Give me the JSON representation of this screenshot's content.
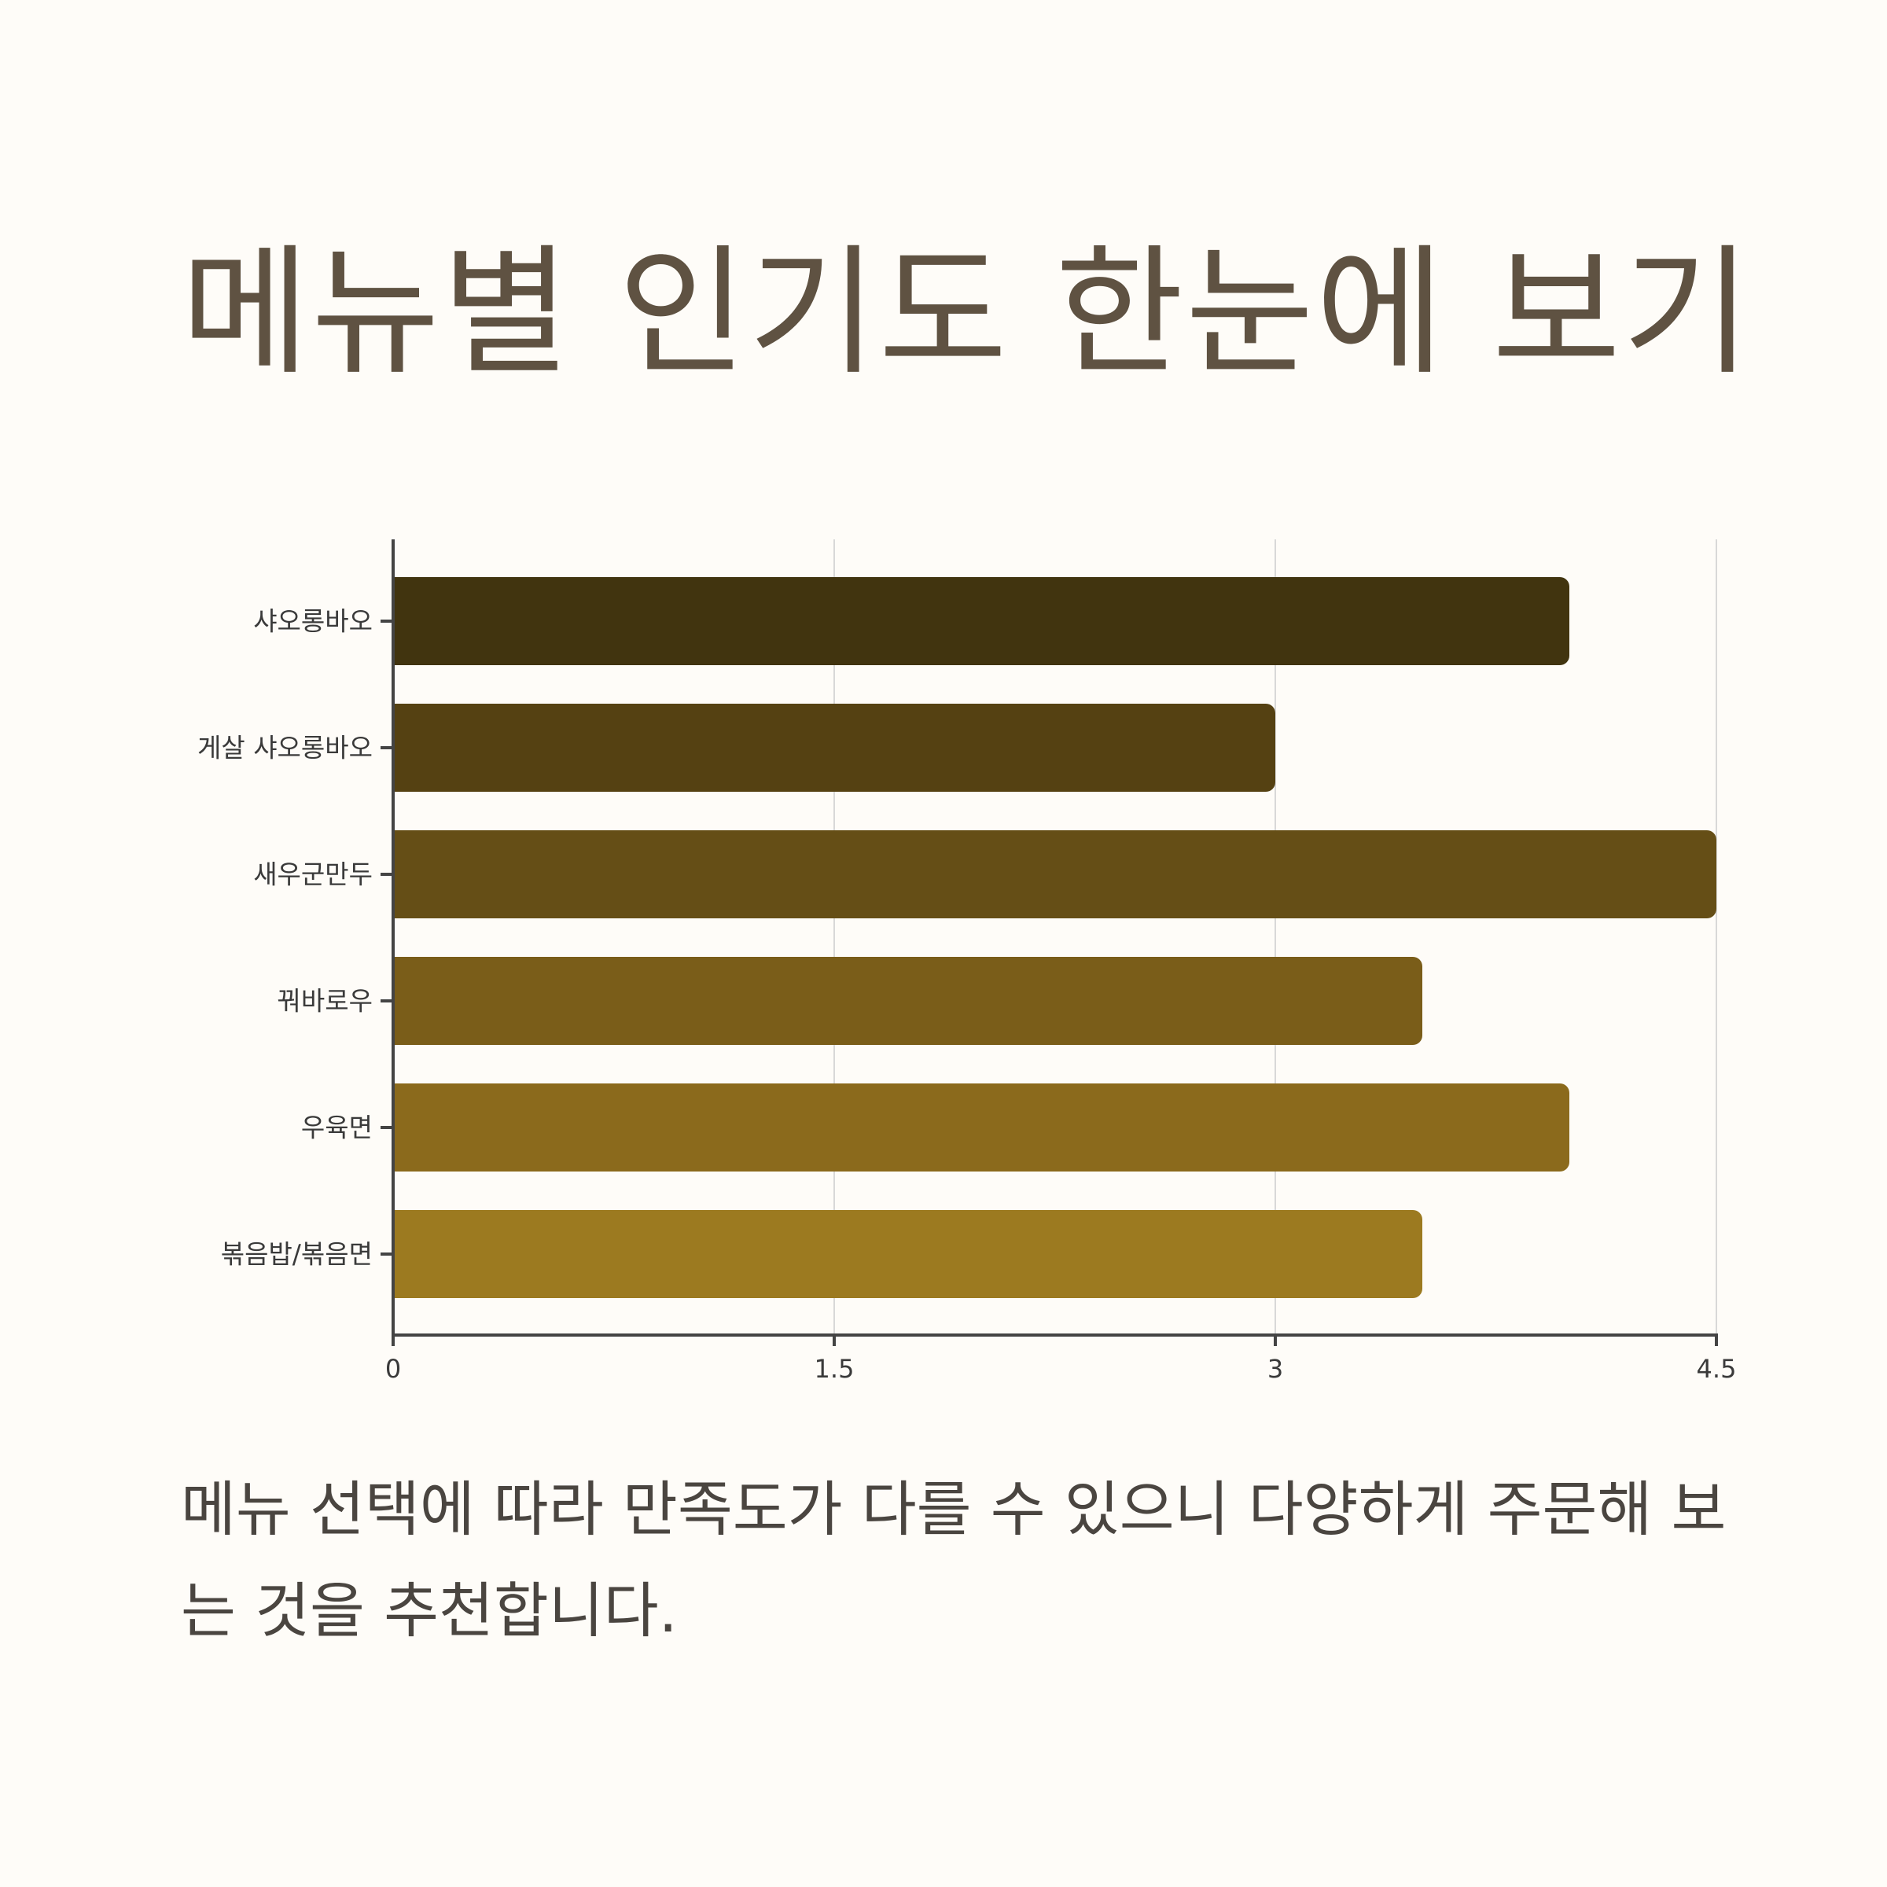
{
  "header": {
    "title": "메뉴별 인기도 한눈에 보기"
  },
  "chart_data": {
    "type": "bar",
    "orientation": "horizontal",
    "title": "",
    "xlabel": "",
    "ylabel": "",
    "categories": [
      "샤오롱바오",
      "게살 샤오롱바오",
      "새우군만두",
      "꿔바로우",
      "우육면",
      "볶음밥/볶음면"
    ],
    "values": [
      4,
      3,
      4.5,
      3.5,
      4,
      3.5
    ],
    "xlim": [
      0,
      4.5
    ],
    "xticks": [
      0,
      1.5,
      3,
      4.5
    ],
    "xtick_labels": [
      "0",
      "1.5",
      "3",
      "4.5"
    ],
    "grid": "vertical",
    "legend": "none",
    "colors": [
      "#41340f",
      "#554112",
      "#654e16",
      "#7a5d19",
      "#8b6a1c",
      "#9c7a20"
    ],
    "axis_color": "#444444",
    "grid_color": "#d8d8d8"
  },
  "caption": {
    "text": "메뉴 선택에 따라 만족도가 다를 수 있으니 다양하게 주문해 보는 것을 추천합니다."
  }
}
